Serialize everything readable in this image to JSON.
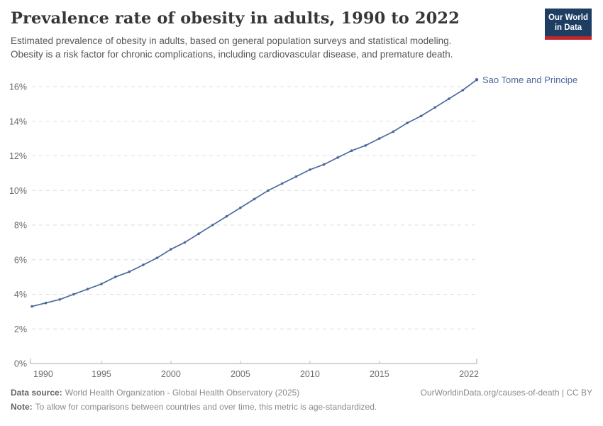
{
  "header": {
    "title": "Prevalence rate of obesity in adults, 1990 to 2022",
    "subtitle_line1": "Estimated prevalence of obesity in adults, based on general population surveys and statistical modeling.",
    "subtitle_line2": "Obesity is a risk factor for chronic complications, including cardiovascular disease, and premature death.",
    "logo": {
      "line1": "Our World",
      "line2": "in Data",
      "bg_color": "#1d3d63",
      "accent_color": "#c0262d"
    }
  },
  "chart_data": {
    "type": "line",
    "title": "Prevalence rate of obesity in adults, 1990 to 2022",
    "xlabel": "",
    "ylabel": "",
    "xlim": [
      1990,
      2022
    ],
    "ylim": [
      0,
      16
    ],
    "grid": "horizontal-dashed",
    "legend_position": "end-of-line-label",
    "x_ticks": {
      "values": [
        1990,
        1995,
        2000,
        2005,
        2010,
        2015,
        2022
      ],
      "labels": [
        "1990",
        "1995",
        "2000",
        "2005",
        "2010",
        "2015",
        "2022"
      ]
    },
    "y_ticks": {
      "values": [
        0,
        2,
        4,
        6,
        8,
        10,
        12,
        14,
        16
      ],
      "labels": [
        "0%",
        "2%",
        "4%",
        "6%",
        "8%",
        "10%",
        "12%",
        "14%",
        "16%"
      ]
    },
    "series": [
      {
        "name": "Sao Tome and Principe",
        "color": "#4C6A9C",
        "x": [
          1990,
          1991,
          1992,
          1993,
          1994,
          1995,
          1996,
          1997,
          1998,
          1999,
          2000,
          2001,
          2002,
          2003,
          2004,
          2005,
          2006,
          2007,
          2008,
          2009,
          2010,
          2011,
          2012,
          2013,
          2014,
          2015,
          2016,
          2017,
          2018,
          2019,
          2020,
          2021,
          2022
        ],
        "values": [
          3.3,
          3.5,
          3.7,
          4.0,
          4.3,
          4.6,
          5.0,
          5.3,
          5.7,
          6.1,
          6.6,
          7.0,
          7.5,
          8.0,
          8.5,
          9.0,
          9.5,
          10.0,
          10.4,
          10.8,
          11.2,
          11.5,
          11.9,
          12.3,
          12.6,
          13.0,
          13.4,
          13.9,
          14.3,
          14.8,
          15.3,
          15.8,
          16.4
        ]
      }
    ],
    "colors": {
      "gridline": "#dedede",
      "axis_line": "#a8a8a8",
      "tick_text": "#6b6b6b"
    }
  },
  "footer": {
    "source_label": "Data source:",
    "source_text": "World Health Organization - Global Health Observatory (2025)",
    "rights_text": "OurWorldinData.org/causes-of-death | CC BY",
    "note_label": "Note:",
    "note_text": "To allow for comparisons between countries and over time, this metric is age-standardized."
  }
}
